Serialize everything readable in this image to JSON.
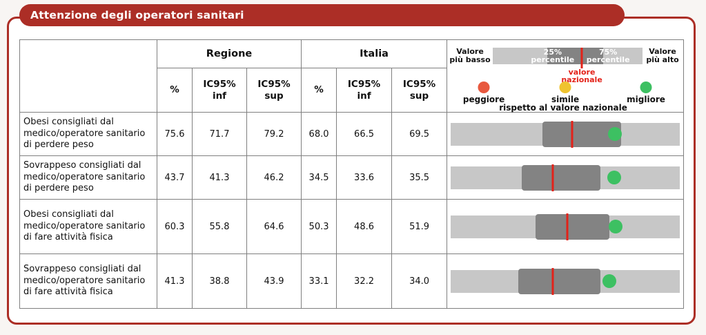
{
  "page": {
    "title": "Attenzione degli operatori sanitari"
  },
  "colors": {
    "accent_red": "#AC2E26",
    "national_line": "#E32219",
    "bar_light": "#C7C7C7",
    "bar_dark": "#838383",
    "peggiore": "#E8593F",
    "simile": "#EFC32F",
    "migliore": "#3DC062"
  },
  "legend": {
    "valore_piu_basso": "Valore più basso",
    "valore_piu_alto": "Valore più alto",
    "pct25": "25% percentile",
    "pct75": "75% percentile",
    "valore_nazionale": "valore nazionale",
    "peggiore": "peggiore",
    "simile": "simile",
    "migliore": "migliore",
    "rispetto": "rispetto al valore nazionale"
  },
  "table": {
    "col_groups": [
      {
        "label": "Regione"
      },
      {
        "label": "Italia"
      }
    ],
    "sub_headers": [
      "%",
      "IC95% inf",
      "IC95% sup",
      "%",
      "IC95% inf",
      "IC95% sup"
    ],
    "rows": [
      {
        "label": "Obesi consigliati dal medico/operatore sanitario di perdere peso",
        "regione": {
          "pct": "75.6",
          "ic_inf": "71.7",
          "ic_sup": "79.2"
        },
        "italia": {
          "pct": "68.0",
          "ic_inf": "66.5",
          "ic_sup": "69.5"
        },
        "bar": {
          "q25_pct": 39.9,
          "q75_pct": 74.4,
          "national_pct": 53.0,
          "dot_pct": 71.7,
          "dot_color": "migliore"
        },
        "size": "short"
      },
      {
        "label": "Sovrappeso consigliati dal medico/operatore sanitario di perdere peso",
        "regione": {
          "pct": "43.7",
          "ic_inf": "41.3",
          "ic_sup": "46.2"
        },
        "italia": {
          "pct": "34.5",
          "ic_inf": "33.6",
          "ic_sup": "35.5"
        },
        "bar": {
          "q25_pct": 31.0,
          "q75_pct": 65.5,
          "national_pct": 44.6,
          "dot_pct": 71.4,
          "dot_color": "migliore"
        },
        "size": "short"
      },
      {
        "label": "Obesi consigliati dal medico/operatore sanitario di fare attività fisica",
        "regione": {
          "pct": "60.3",
          "ic_inf": "55.8",
          "ic_sup": "64.6"
        },
        "italia": {
          "pct": "50.3",
          "ic_inf": "48.6",
          "ic_sup": "51.9"
        },
        "bar": {
          "q25_pct": 36.9,
          "q75_pct": 69.3,
          "national_pct": 50.9,
          "dot_pct": 72.0,
          "dot_color": "migliore"
        },
        "size": "tall"
      },
      {
        "label": "Sovrappeso consigliati dal medico/operatore sanitario di fare attività fisica",
        "regione": {
          "pct": "41.3",
          "ic_inf": "38.8",
          "ic_sup": "43.9"
        },
        "italia": {
          "pct": "33.1",
          "ic_inf": "32.2",
          "ic_sup": "34.0"
        },
        "bar": {
          "q25_pct": 29.5,
          "q75_pct": 65.2,
          "national_pct": 44.6,
          "dot_pct": 69.3,
          "dot_color": "migliore"
        },
        "size": "tall"
      }
    ]
  }
}
